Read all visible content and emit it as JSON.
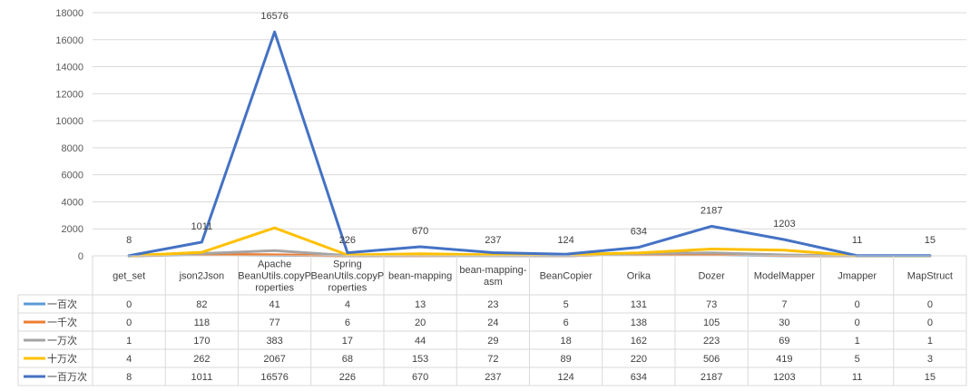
{
  "chart_data": {
    "type": "line",
    "categories": [
      "get_set",
      "json2Json",
      "Apache BeanUtils.copyProperties",
      "Spring BeanUtils.copyProperties",
      "bean-mapping",
      "bean-mapping-asm",
      "BeanCopier",
      "Orika",
      "Dozer",
      "ModelMapper",
      "Jmapper",
      "MapStruct"
    ],
    "category_display_lines": [
      [
        "get_set"
      ],
      [
        "json2Json"
      ],
      [
        "Apache",
        "BeanUtils.copyP",
        "roperties"
      ],
      [
        "Spring",
        "BeanUtils.copyP",
        "roperties"
      ],
      [
        "bean-mapping"
      ],
      [
        "bean-mapping-",
        "asm"
      ],
      [
        "BeanCopier"
      ],
      [
        "Orika"
      ],
      [
        "Dozer"
      ],
      [
        "ModelMapper"
      ],
      [
        "Jmapper"
      ],
      [
        "MapStruct"
      ]
    ],
    "series": [
      {
        "name": "一百次",
        "color": "#5b9bd5",
        "values": [
          0,
          82,
          41,
          4,
          13,
          23,
          5,
          131,
          73,
          7,
          0,
          0
        ]
      },
      {
        "name": "一千次",
        "color": "#ed7d31",
        "values": [
          0,
          118,
          77,
          6,
          20,
          24,
          6,
          138,
          105,
          30,
          0,
          0
        ]
      },
      {
        "name": "一万次",
        "color": "#a5a5a5",
        "values": [
          1,
          170,
          383,
          17,
          44,
          29,
          18,
          162,
          223,
          69,
          1,
          1
        ]
      },
      {
        "name": "十万次",
        "color": "#ffc000",
        "values": [
          4,
          262,
          2067,
          68,
          153,
          72,
          89,
          220,
          506,
          419,
          5,
          3
        ]
      },
      {
        "name": "一百万次",
        "color": "#4472c4",
        "values": [
          8,
          1011,
          16576,
          226,
          670,
          237,
          124,
          634,
          2187,
          1203,
          11,
          15
        ]
      }
    ],
    "labeled_series_index": 4,
    "ylim": [
      0,
      18000
    ],
    "yticks": [
      0,
      2000,
      4000,
      6000,
      8000,
      10000,
      12000,
      14000,
      16000,
      18000
    ],
    "grid": true,
    "legend": "data-table-left",
    "title": "",
    "xlabel": "",
    "ylabel": ""
  }
}
